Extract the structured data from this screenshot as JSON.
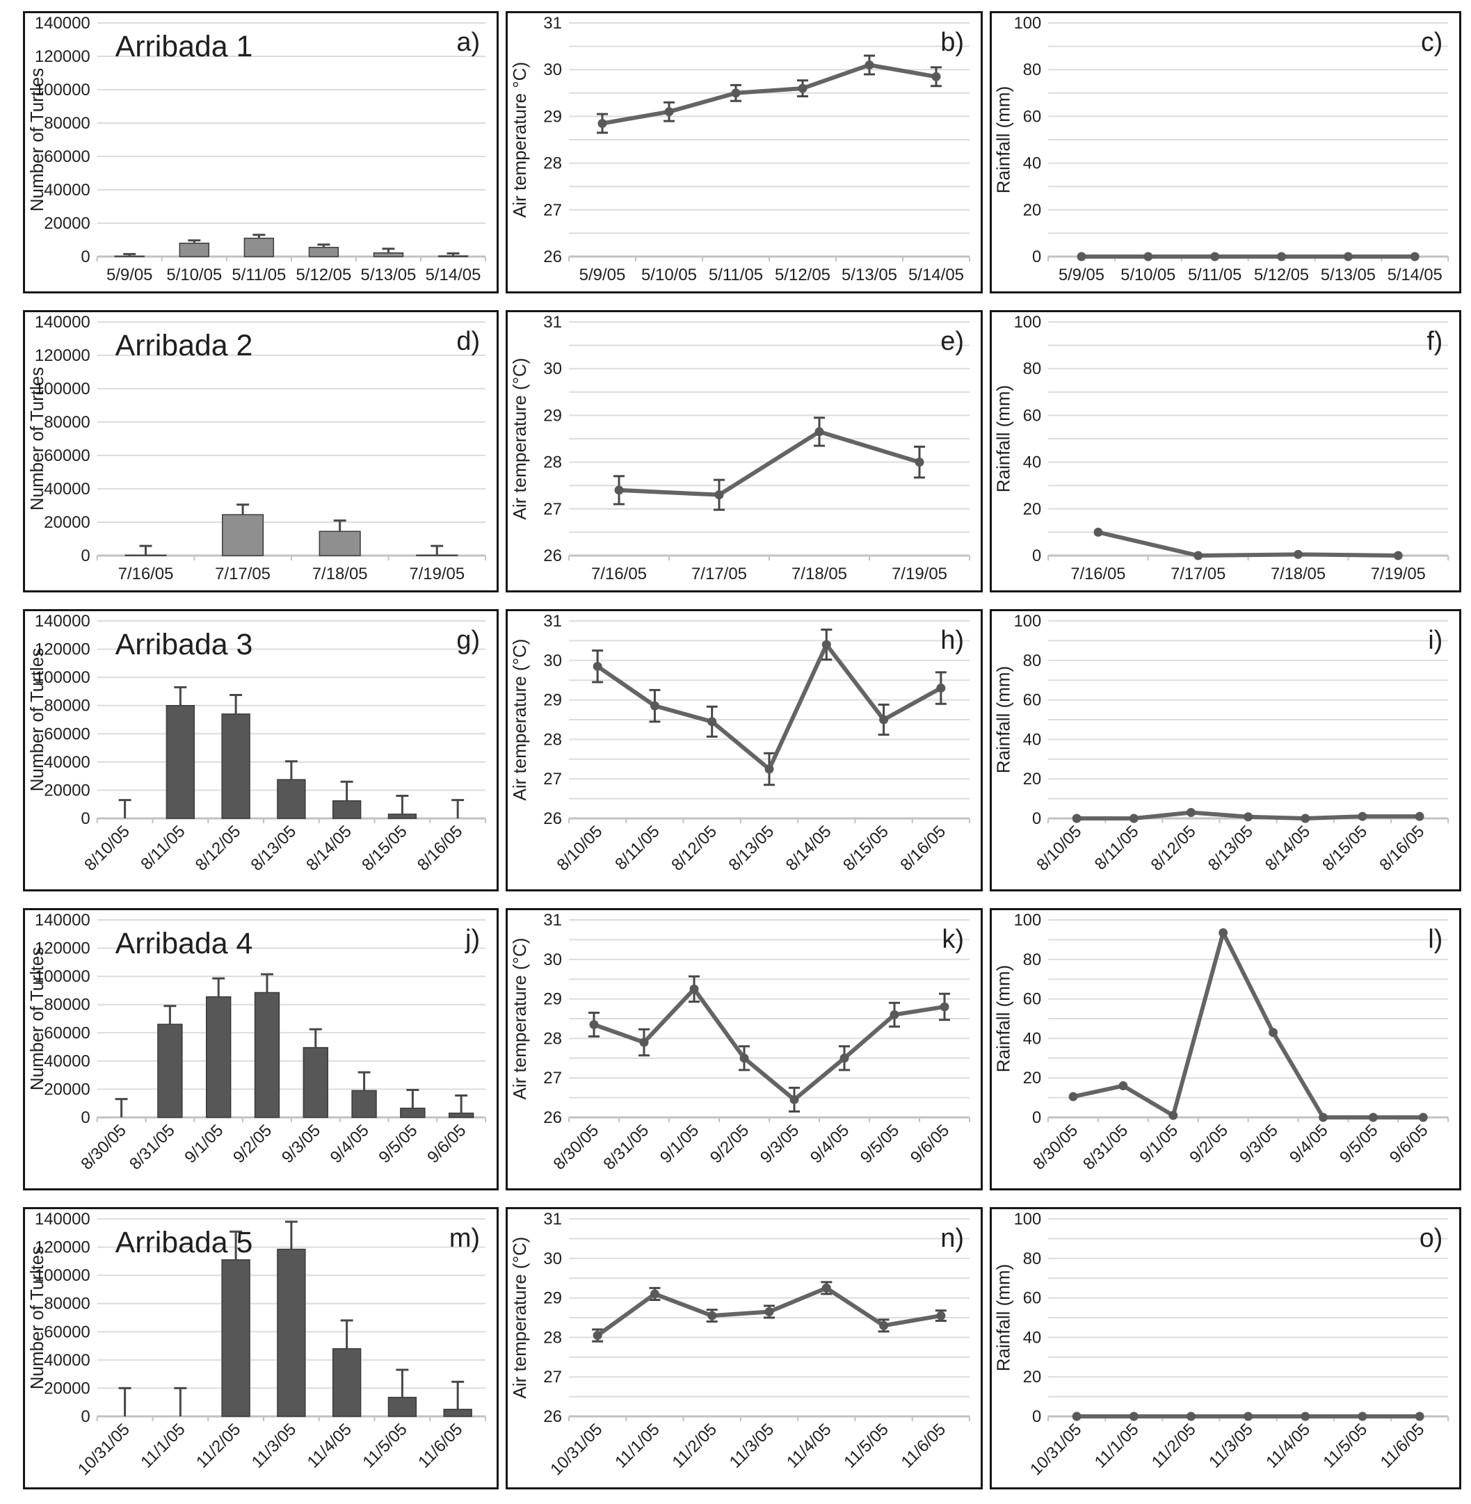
{
  "figure": {
    "rows": 5,
    "cols": 3,
    "description_visible_text_only": true
  },
  "style": {
    "grid_color": "#dcdcdc",
    "baseline_color": "#c2c2c2",
    "tick_color": "#c2c2c2",
    "text_color": "#1f1f1f",
    "line_color": "#646464",
    "error_color": "#474747",
    "bar_fill_light": "#8f8f8f",
    "bar_fill_dark": "#575757",
    "bar_stroke": "#3a3a3a"
  },
  "chart_data": [
    {
      "letter": "a)",
      "type": "bar",
      "title": "Arribada 1",
      "ylabel": "Number of Turtles",
      "ymin": 0,
      "ymax": 140000,
      "major": 20000,
      "minor": null,
      "categories": [
        "5/9/05",
        "5/10/05",
        "5/11/05",
        "5/12/05",
        "5/13/05",
        "5/14/05"
      ],
      "values": [
        300,
        8000,
        11000,
        5500,
        2200,
        400
      ],
      "err_up": [
        1200,
        1700,
        2000,
        1700,
        2500,
        1500
      ],
      "rotated": false,
      "bar_color": "#8f8f8f",
      "ml": 104,
      "barw": 0.45
    },
    {
      "letter": "b)",
      "type": "line",
      "title": "",
      "ylabel": "Air temperature  °C)",
      "ymin": 26,
      "ymax": 31,
      "major": 1,
      "minor": 0.5,
      "categories": [
        "5/9/05",
        "5/10/05",
        "5/11/05",
        "5/12/05",
        "5/13/05",
        "5/14/05"
      ],
      "values": [
        28.85,
        29.1,
        29.5,
        29.6,
        30.1,
        29.85
      ],
      "err": [
        0.2,
        0.2,
        0.17,
        0.17,
        0.2,
        0.2
      ],
      "rotated": false,
      "ml": 88
    },
    {
      "letter": "c)",
      "type": "line",
      "title": "",
      "ylabel": "Rainfall (mm)",
      "ymin": 0,
      "ymax": 100,
      "major": 20,
      "minor": 10,
      "categories": [
        "5/9/05",
        "5/10/05",
        "5/11/05",
        "5/12/05",
        "5/13/05",
        "5/14/05"
      ],
      "values": [
        0,
        0,
        0,
        0,
        0,
        0
      ],
      "err": null,
      "rotated": false,
      "ml": 82
    },
    {
      "letter": "d)",
      "type": "bar",
      "title": "Arribada 2",
      "ylabel": "Number of Turtles",
      "ymin": 0,
      "ymax": 140000,
      "major": 20000,
      "minor": null,
      "categories": [
        "7/16/05",
        "7/17/05",
        "7/18/05",
        "7/19/05"
      ],
      "values": [
        300,
        24500,
        14500,
        300
      ],
      "err_up": [
        5500,
        6000,
        6500,
        5500
      ],
      "rotated": false,
      "bar_color": "#8f8f8f",
      "ml": 104,
      "barw": 0.42
    },
    {
      "letter": "e)",
      "type": "line",
      "title": "",
      "ylabel": "Air temperature (°C)",
      "ymin": 26,
      "ymax": 31,
      "major": 1,
      "minor": 0.5,
      "categories": [
        "7/16/05",
        "7/17/05",
        "7/18/05",
        "7/19/05"
      ],
      "values": [
        27.4,
        27.3,
        28.65,
        28.0
      ],
      "err": [
        0.3,
        0.32,
        0.3,
        0.33
      ],
      "rotated": false,
      "ml": 88
    },
    {
      "letter": "f)",
      "type": "line",
      "title": "",
      "ylabel": "Rainfall (mm)",
      "ymin": 0,
      "ymax": 100,
      "major": 20,
      "minor": 10,
      "categories": [
        "7/16/05",
        "7/17/05",
        "7/18/05",
        "7/19/05"
      ],
      "values": [
        10,
        0,
        0.5,
        0
      ],
      "err": null,
      "rotated": false,
      "ml": 82
    },
    {
      "letter": "g)",
      "type": "bar",
      "title": "Arribada 3",
      "ylabel": "Number of Turtles",
      "ymin": 0,
      "ymax": 140000,
      "major": 20000,
      "minor": null,
      "categories": [
        "8/10/05",
        "8/11/05",
        "8/12/05",
        "8/13/05",
        "8/14/05",
        "8/15/05",
        "8/16/05"
      ],
      "values": [
        0,
        80000,
        74000,
        27500,
        12500,
        3000,
        0
      ],
      "err_up": [
        13000,
        13000,
        13500,
        13000,
        13500,
        13000,
        13000
      ],
      "rotated": true,
      "bar_color": "#575757",
      "ml": 104,
      "barw": 0.5
    },
    {
      "letter": "h)",
      "type": "line",
      "title": "",
      "ylabel": "Air temperature (°C)",
      "ymin": 26,
      "ymax": 31,
      "major": 1,
      "minor": 0.5,
      "categories": [
        "8/10/05",
        "8/11/05",
        "8/12/05",
        "8/13/05",
        "8/14/05",
        "8/15/05",
        "8/16/05"
      ],
      "values": [
        29.85,
        28.85,
        28.45,
        27.25,
        30.4,
        28.5,
        29.3
      ],
      "err": [
        0.4,
        0.4,
        0.38,
        0.4,
        0.38,
        0.38,
        0.4
      ],
      "rotated": true,
      "ml": 88
    },
    {
      "letter": "i)",
      "type": "line",
      "title": "",
      "ylabel": "Rainfall (mm)",
      "ymin": 0,
      "ymax": 100,
      "major": 20,
      "minor": 10,
      "categories": [
        "8/10/05",
        "8/11/05",
        "8/12/05",
        "8/13/05",
        "8/14/05",
        "8/15/05",
        "8/16/05"
      ],
      "values": [
        0,
        0,
        3,
        0.8,
        0,
        1,
        1
      ],
      "err": null,
      "rotated": true,
      "ml": 82
    },
    {
      "letter": "j)",
      "type": "bar",
      "title": "Arribada 4",
      "ylabel": "Number of Turltes",
      "ymin": 0,
      "ymax": 140000,
      "major": 20000,
      "minor": null,
      "categories": [
        "8/30/05",
        "8/31/05",
        "9/1/05",
        "9/2/05",
        "9/3/05",
        "9/4/05",
        "9/5/05",
        "9/6/05"
      ],
      "values": [
        0,
        66000,
        85500,
        88500,
        49500,
        19000,
        6500,
        3000
      ],
      "err_up": [
        13000,
        13000,
        13000,
        13000,
        13000,
        13000,
        13000,
        12500
      ],
      "rotated": true,
      "bar_color": "#575757",
      "ml": 104,
      "barw": 0.5
    },
    {
      "letter": "k)",
      "type": "line",
      "title": "",
      "ylabel": "Air temperature  (°C)",
      "ymin": 26,
      "ymax": 31,
      "major": 1,
      "minor": 0.5,
      "categories": [
        "8/30/05",
        "8/31/05",
        "9/1/05",
        "9/2/05",
        "9/3/05",
        "9/4/05",
        "9/5/05",
        "9/6/05"
      ],
      "values": [
        28.35,
        27.9,
        29.25,
        27.5,
        26.45,
        27.5,
        28.6,
        28.8
      ],
      "err": [
        0.3,
        0.33,
        0.32,
        0.3,
        0.3,
        0.3,
        0.3,
        0.33
      ],
      "rotated": true,
      "ml": 88
    },
    {
      "letter": "l)",
      "type": "line",
      "title": "",
      "ylabel": "Rainfall (mm)",
      "ymin": 0,
      "ymax": 100,
      "major": 20,
      "minor": 10,
      "categories": [
        "8/30/05",
        "8/31/05",
        "9/1/05",
        "9/2/05",
        "9/3/05",
        "9/4/05",
        "9/5/05",
        "9/6/05"
      ],
      "values": [
        10.5,
        16,
        1,
        93.5,
        43,
        0,
        0,
        0
      ],
      "err": null,
      "rotated": true,
      "ml": 82
    },
    {
      "letter": "m)",
      "type": "bar",
      "title": "Arribada 5",
      "ylabel": "Number of Turltes",
      "ymin": 0,
      "ymax": 140000,
      "major": 20000,
      "minor": null,
      "categories": [
        "10/31/05",
        "11/1/05",
        "11/2/05",
        "11/3/05",
        "11/4/05",
        "11/5/05",
        "11/6/05"
      ],
      "values": [
        0,
        0,
        111000,
        118500,
        48000,
        13500,
        5000
      ],
      "err_up": [
        20000,
        20000,
        20000,
        19500,
        20000,
        19500,
        19500
      ],
      "rotated": true,
      "bar_color": "#575757",
      "ml": 104,
      "barw": 0.5
    },
    {
      "letter": "n)",
      "type": "line",
      "title": "",
      "ylabel": "Air temperature (°C)",
      "ymin": 26,
      "ymax": 31,
      "major": 1,
      "minor": 0.5,
      "categories": [
        "10/31/05",
        "11/1/05",
        "11/2/05",
        "11/3/05",
        "11/4/05",
        "11/5/05",
        "11/6/05"
      ],
      "values": [
        28.05,
        29.1,
        28.55,
        28.65,
        29.25,
        28.3,
        28.55
      ],
      "err": [
        0.15,
        0.15,
        0.15,
        0.15,
        0.15,
        0.15,
        0.13
      ],
      "rotated": true,
      "ml": 88
    },
    {
      "letter": "o)",
      "type": "line",
      "title": "",
      "ylabel": "Rainfall (mm)",
      "ymin": 0,
      "ymax": 100,
      "major": 20,
      "minor": 10,
      "categories": [
        "10/31/05",
        "11/1/05",
        "11/2/05",
        "11/3/05",
        "11/4/05",
        "11/5/05",
        "11/6/05"
      ],
      "values": [
        0,
        0,
        0,
        0,
        0,
        0,
        0
      ],
      "err": null,
      "rotated": true,
      "ml": 82
    }
  ]
}
